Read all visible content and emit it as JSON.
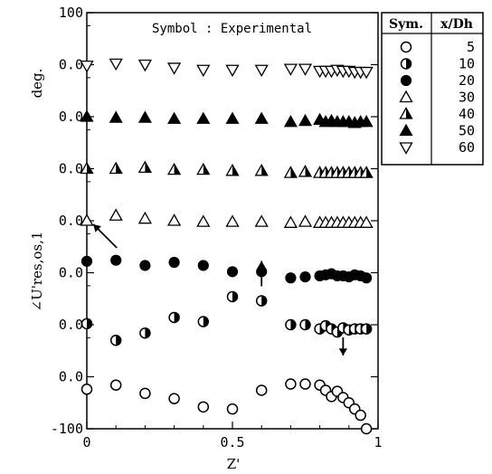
{
  "chart_data": {
    "type": "scatter",
    "title": "",
    "annotation": "Symbol : Experimental",
    "ylabel_unit": "deg.",
    "ylabel": "∠U'res,os,1",
    "xlabel": "Z'",
    "xlim": [
      0,
      1
    ],
    "ylim_labels": [
      "100",
      "0.0",
      "0.0",
      "0.0",
      "0.0",
      "0.0",
      "0.0",
      "0.0",
      "-100"
    ],
    "xtick_labels": [
      "0",
      "0.5",
      "1"
    ],
    "legend_header": [
      "Sym.",
      "x/Dh"
    ],
    "legend_values": [
      "5",
      "10",
      "20",
      "30",
      "40",
      "50",
      "60"
    ],
    "series": [
      {
        "name": "5",
        "marker": "circle-open",
        "offset_level": 1,
        "x": [
          0,
          0.1,
          0.2,
          0.3,
          0.4,
          0.5,
          0.6,
          0.7,
          0.75,
          0.8,
          0.82,
          0.84,
          0.86,
          0.88,
          0.9,
          0.92,
          0.94,
          0.96
        ],
        "y": [
          -12,
          -8,
          -16,
          -21,
          -29,
          -31,
          -13,
          -7,
          -7,
          -8,
          -13,
          -19,
          -14,
          -20,
          -25,
          -31,
          -37,
          -50
        ]
      },
      {
        "name": "10",
        "marker": "circle-half",
        "offset_level": 2,
        "x": [
          0,
          0.1,
          0.2,
          0.3,
          0.4,
          0.5,
          0.6,
          0.7,
          0.75,
          0.8,
          0.82,
          0.84,
          0.86,
          0.88,
          0.9,
          0.92,
          0.94,
          0.96
        ],
        "y": [
          1,
          -15,
          -8,
          7,
          3,
          27,
          23,
          0,
          0,
          -4,
          -1,
          -4,
          -7,
          -3,
          -5,
          -4,
          -4,
          -4
        ]
      },
      {
        "name": "20",
        "marker": "circle-filled",
        "offset_level": 3,
        "x": [
          0,
          0.1,
          0.2,
          0.3,
          0.4,
          0.5,
          0.6,
          0.7,
          0.75,
          0.8,
          0.82,
          0.84,
          0.86,
          0.88,
          0.9,
          0.92,
          0.94,
          0.96
        ],
        "y": [
          11,
          12,
          7,
          10,
          7,
          1,
          1,
          -5,
          -4,
          -3,
          -2,
          -1,
          -3,
          -3,
          -4,
          -2,
          -3,
          -5
        ]
      },
      {
        "name": "30",
        "marker": "triangle-up-open",
        "offset_level": 4,
        "x": [
          0,
          0.1,
          0.2,
          0.3,
          0.4,
          0.5,
          0.6,
          0.7,
          0.75,
          0.8,
          0.82,
          0.84,
          0.86,
          0.88,
          0.9,
          0.92,
          0.94,
          0.96
        ],
        "y": [
          0,
          5,
          2,
          0,
          -1,
          -1,
          -1,
          -2,
          -1,
          -2,
          -2,
          -2,
          -2,
          -2,
          -2,
          -2,
          -2,
          -2
        ]
      },
      {
        "name": "40",
        "marker": "triangle-up-half",
        "offset_level": 5,
        "x": [
          0,
          0.1,
          0.2,
          0.3,
          0.4,
          0.5,
          0.6,
          0.7,
          0.75,
          0.8,
          0.82,
          0.84,
          0.86,
          0.88,
          0.9,
          0.92,
          0.94,
          0.96
        ],
        "y": [
          0,
          0,
          1,
          -1,
          -1,
          -2,
          -2,
          -4,
          -3,
          -4,
          -4,
          -4,
          -4,
          -4,
          -4,
          -4,
          -4,
          -4
        ]
      },
      {
        "name": "50",
        "marker": "triangle-up-filled",
        "offset_level": 6,
        "x": [
          0,
          0.1,
          0.2,
          0.3,
          0.4,
          0.5,
          0.6,
          0.7,
          0.75,
          0.8,
          0.82,
          0.84,
          0.86,
          0.88,
          0.9,
          0.92,
          0.94,
          0.96
        ],
        "y": [
          0,
          -1,
          -1,
          -2,
          -2,
          -2,
          -2,
          -5,
          -4,
          -3,
          -5,
          -4,
          -5,
          -5,
          -5,
          -6,
          -5,
          -5
        ]
      },
      {
        "name": "60",
        "marker": "triangle-down-open",
        "offset_level": 7,
        "x": [
          0,
          0.1,
          0.2,
          0.3,
          0.4,
          0.5,
          0.6,
          0.7,
          0.75,
          0.8,
          0.82,
          0.84,
          0.86,
          0.88,
          0.9,
          0.92,
          0.94,
          0.96
        ],
        "y": [
          -1,
          1,
          0,
          -3,
          -5,
          -5,
          -5,
          -4,
          -4,
          -6,
          -6,
          -6,
          -5,
          -6,
          -6,
          -7,
          -7,
          -7
        ]
      }
    ],
    "arrows": [
      {
        "direction": "up-left",
        "at_x": 0.05
      },
      {
        "direction": "up",
        "at_x": 0.6
      },
      {
        "direction": "down",
        "at_x": 0.88
      }
    ],
    "grid": false,
    "legend_position": "outside-right-top"
  }
}
